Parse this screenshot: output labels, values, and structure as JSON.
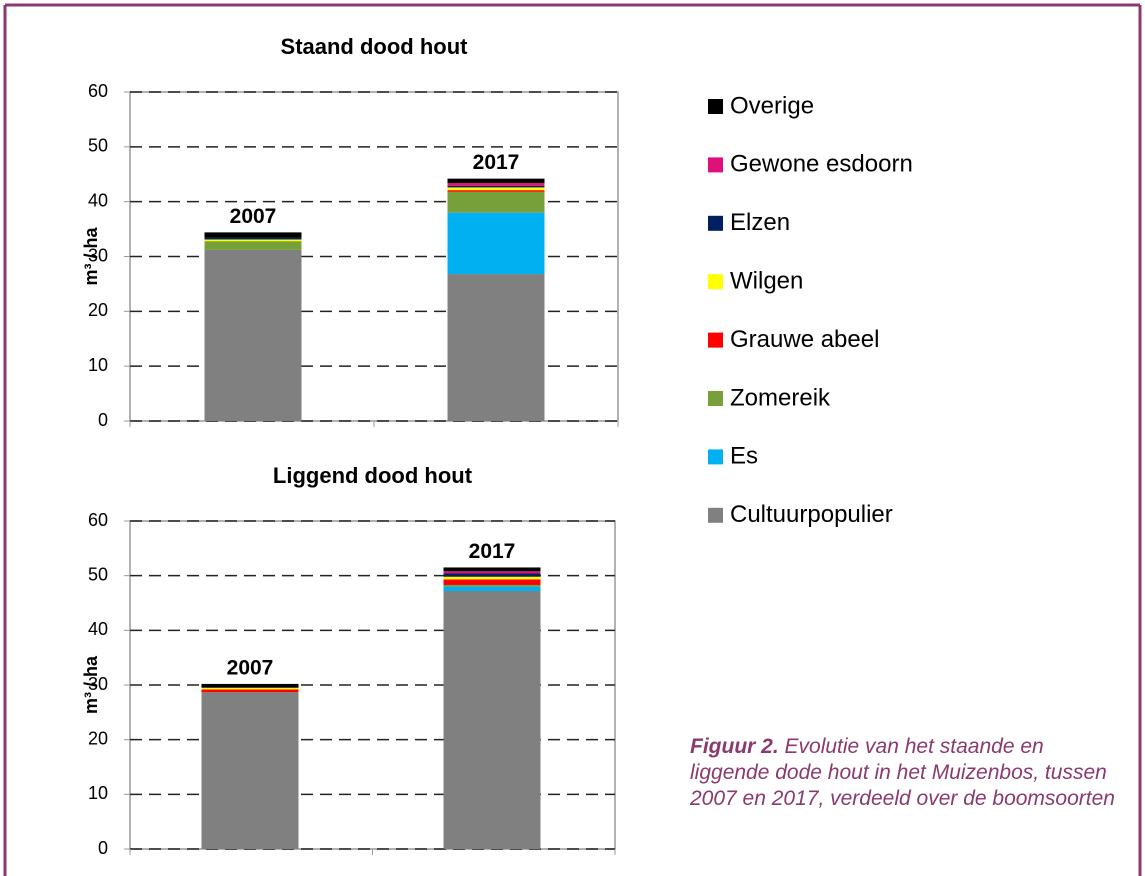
{
  "chart_data": [
    {
      "type": "stacked-bar",
      "title": "Staand dood hout",
      "y_label": "m³ / ha",
      "categories": [
        "2007",
        "2017"
      ],
      "ylim": [
        0,
        60
      ],
      "yticks": [
        0,
        10,
        20,
        30,
        40,
        50,
        60
      ],
      "grid": true,
      "series": [
        {
          "name": "Cultuurpopulier",
          "color": "#808080",
          "values": [
            31.2,
            26.8
          ]
        },
        {
          "name": "Es",
          "color": "#00b0f0",
          "values": [
            0,
            11.2
          ]
        },
        {
          "name": "Zomereik",
          "color": "#77a03a",
          "values": [
            1.6,
            3.8
          ]
        },
        {
          "name": "Grauwe abeel",
          "color": "#ff0000",
          "values": [
            0,
            0.3
          ]
        },
        {
          "name": "Wilgen",
          "color": "#ffff00",
          "values": [
            0.3,
            0.5
          ]
        },
        {
          "name": "Elzen",
          "color": "#002060",
          "values": [
            0.3,
            0.3
          ]
        },
        {
          "name": "Gewone esdoorn",
          "color": "#e0107a",
          "values": [
            0,
            0.5
          ]
        },
        {
          "name": "Overige",
          "color": "#000000",
          "values": [
            1.0,
            0.8
          ]
        }
      ]
    },
    {
      "type": "stacked-bar",
      "title": "Liggend dood hout",
      "y_label": "m³ / ha",
      "categories": [
        "2007",
        "2017"
      ],
      "ylim": [
        0,
        60
      ],
      "yticks": [
        0,
        10,
        20,
        30,
        40,
        50,
        60
      ],
      "grid": true,
      "series": [
        {
          "name": "Cultuurpopulier",
          "color": "#808080",
          "values": [
            28.7,
            47.2
          ]
        },
        {
          "name": "Es",
          "color": "#00b0f0",
          "values": [
            0,
            0.8
          ]
        },
        {
          "name": "Zomereik",
          "color": "#77a03a",
          "values": [
            0,
            0.3
          ]
        },
        {
          "name": "Grauwe abeel",
          "color": "#ff0000",
          "values": [
            0.5,
            1.0
          ]
        },
        {
          "name": "Wilgen",
          "color": "#ffff00",
          "values": [
            0.3,
            0.5
          ]
        },
        {
          "name": "Elzen",
          "color": "#002060",
          "values": [
            0,
            0.6
          ]
        },
        {
          "name": "Gewone esdoorn",
          "color": "#e0107a",
          "values": [
            0,
            0.4
          ]
        },
        {
          "name": "Overige",
          "color": "#000000",
          "values": [
            0.7,
            0.7
          ]
        }
      ]
    }
  ],
  "caption": {
    "label": "Figuur 2.",
    "text": "Evolutie van het staande en liggende dode hout in het Muizenbos, tussen 2007 en 2017, verdeeld over de boomsoorten"
  }
}
